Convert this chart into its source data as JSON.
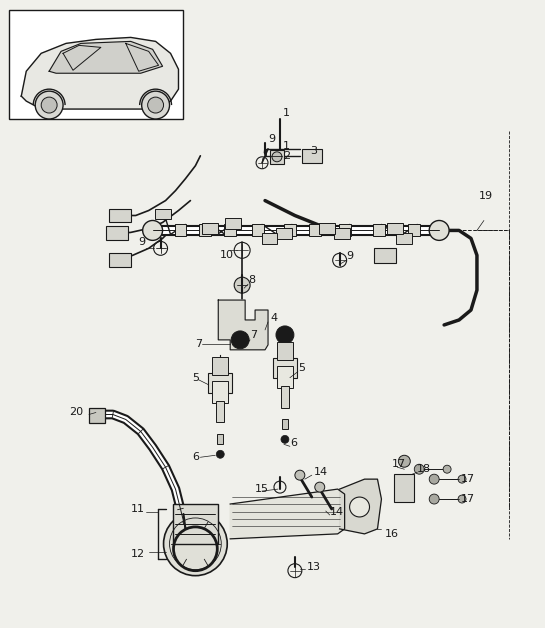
{
  "bg_color": "#f0f0eb",
  "line_color": "#1a1a1a",
  "label_color": "#1a1a1a",
  "fig_width": 5.45,
  "fig_height": 6.28,
  "dpi": 100
}
